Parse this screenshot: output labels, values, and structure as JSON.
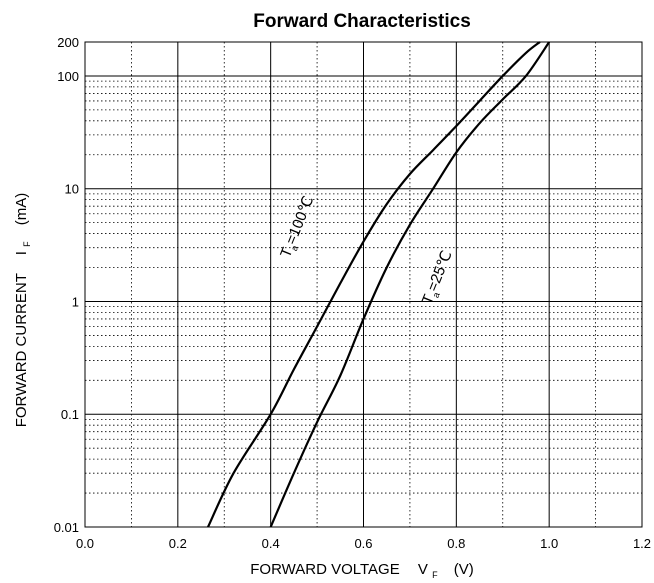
{
  "chart_data": {
    "type": "line",
    "title": "Forward Characteristics",
    "xlabel": {
      "main": "FORWARD VOLTAGE",
      "symbol": "V",
      "subscript": "F",
      "unit": "(V)"
    },
    "ylabel": {
      "main": "FORWARD CURRENT",
      "symbol": "I",
      "subscript": "F",
      "unit": "(mA)"
    },
    "xlim": [
      0.0,
      1.2
    ],
    "ylim": [
      0.01,
      200
    ],
    "yscale": "log",
    "grid": true,
    "x_ticks": [
      "0.0",
      "0.2",
      "0.4",
      "0.6",
      "0.8",
      "1.0",
      "1.2"
    ],
    "y_ticks": [
      {
        "value": 0.01,
        "label": "0.01"
      },
      {
        "value": 0.1,
        "label": "0.1"
      },
      {
        "value": 1,
        "label": "1"
      },
      {
        "value": 10,
        "label": "10"
      },
      {
        "value": 100,
        "label": "100"
      },
      {
        "value": 200,
        "label": "200"
      }
    ],
    "series": [
      {
        "label_parts": {
          "symbol": "T",
          "subscript": "a",
          "text": "=100℃"
        },
        "label_at": [
          0.44,
          2.4
        ],
        "points": [
          [
            0.265,
            0.01
          ],
          [
            0.32,
            0.03
          ],
          [
            0.4,
            0.1
          ],
          [
            0.45,
            0.25
          ],
          [
            0.5,
            0.6
          ],
          [
            0.55,
            1.45
          ],
          [
            0.6,
            3.4
          ],
          [
            0.65,
            7.3
          ],
          [
            0.7,
            13.5
          ],
          [
            0.75,
            22
          ],
          [
            0.8,
            36
          ],
          [
            0.85,
            60
          ],
          [
            0.9,
            100
          ],
          [
            0.95,
            160
          ],
          [
            0.98,
            200
          ]
        ]
      },
      {
        "label_parts": {
          "symbol": "T",
          "subscript": "a",
          "text": "=25℃"
        },
        "label_at": [
          0.745,
          0.92
        ],
        "points": [
          [
            0.4,
            0.01
          ],
          [
            0.45,
            0.03
          ],
          [
            0.5,
            0.085
          ],
          [
            0.55,
            0.22
          ],
          [
            0.6,
            0.7
          ],
          [
            0.65,
            2.0
          ],
          [
            0.7,
            4.8
          ],
          [
            0.75,
            10
          ],
          [
            0.8,
            21
          ],
          [
            0.85,
            38
          ],
          [
            0.9,
            62
          ],
          [
            0.95,
            100
          ],
          [
            1.0,
            200
          ]
        ]
      }
    ]
  }
}
